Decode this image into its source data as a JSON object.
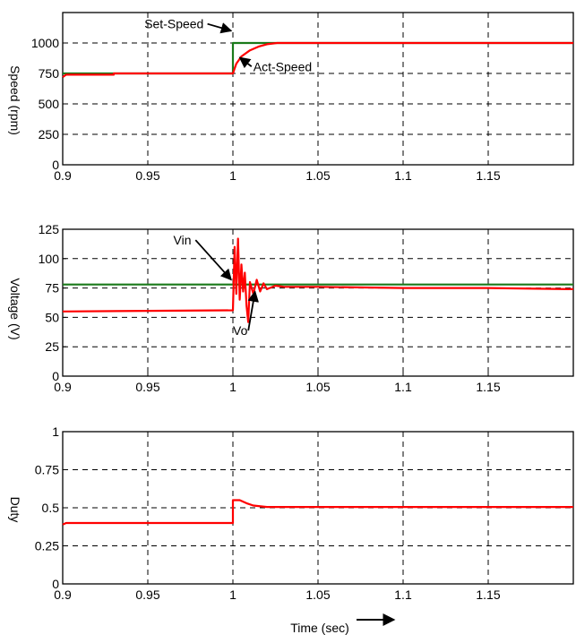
{
  "xlabel": "Time (sec)",
  "colors": {
    "setpoint": "#1a7a1a",
    "actual": "#ff0000",
    "axis": "#000000",
    "grid": "#000000"
  },
  "chart_data": [
    {
      "type": "line",
      "ylabel": "Speed (rpm)",
      "xlim": [
        0.9,
        1.2
      ],
      "ylim": [
        0,
        1250
      ],
      "xticks": [
        "0.9",
        "0.95",
        "1",
        "1.05",
        "1.1",
        "1.15"
      ],
      "yticks": [
        "0",
        "250",
        "500",
        "750",
        "1000"
      ],
      "grid": true,
      "series": [
        {
          "name": "Set-Speed",
          "color": "#1a7a1a",
          "x": [
            0.9,
            1.0,
            1.0,
            1.2
          ],
          "y": [
            750,
            750,
            1000,
            1000
          ]
        },
        {
          "name": "Act-Speed",
          "color": "#ff0000",
          "x": [
            0.9,
            0.902,
            0.93,
            0.93,
            1.0,
            1.002,
            1.005,
            1.01,
            1.015,
            1.02,
            1.026,
            1.2
          ],
          "y": [
            720,
            740,
            740,
            750,
            750,
            830,
            890,
            940,
            970,
            990,
            1000,
            1000
          ]
        }
      ],
      "annotations": [
        {
          "text": "Set-Speed",
          "x": 0.948,
          "y": 1120,
          "arrow_to": [
            0.999,
            1100
          ]
        },
        {
          "text": "Act-Speed",
          "x": 1.012,
          "y": 770,
          "arrow_to": [
            1.004,
            880
          ]
        }
      ]
    },
    {
      "type": "line",
      "ylabel": "Voltage (V)",
      "xlim": [
        0.9,
        1.2
      ],
      "ylim": [
        0,
        125
      ],
      "xticks": [
        "0.9",
        "0.95",
        "1",
        "1.05",
        "1.1",
        "1.15"
      ],
      "yticks": [
        "0",
        "25",
        "50",
        "75",
        "100",
        "125"
      ],
      "grid": true,
      "series": [
        {
          "name": "Vin",
          "color": "#1a7a1a",
          "x": [
            0.9,
            1.2
          ],
          "y": [
            78,
            78
          ]
        },
        {
          "name": "Vo",
          "color": "#ff0000",
          "x": [
            0.9,
            1.0,
            1.001,
            1.002,
            1.003,
            1.004,
            1.005,
            1.006,
            1.007,
            1.008,
            1.009,
            1.01,
            1.012,
            1.014,
            1.016,
            1.018,
            1.02,
            1.025,
            1.03,
            1.05,
            1.1,
            1.15,
            1.2
          ],
          "y": [
            55,
            56,
            110,
            70,
            117,
            65,
            95,
            72,
            88,
            60,
            46,
            80,
            70,
            82,
            72,
            79,
            74,
            77,
            76,
            76,
            75,
            75,
            74
          ]
        }
      ],
      "annotations": [
        {
          "text": "Vin",
          "x": 0.965,
          "y": 112,
          "arrow_to": [
            0.999,
            82
          ]
        },
        {
          "text": "Vo",
          "x": 1.0,
          "y": 35,
          "arrow_to": [
            1.013,
            72
          ]
        }
      ]
    },
    {
      "type": "line",
      "ylabel": "Duty",
      "xlim": [
        0.9,
        1.2
      ],
      "ylim": [
        0,
        1
      ],
      "xticks": [
        "0.9",
        "0.95",
        "1",
        "1.05",
        "1.1",
        "1.15"
      ],
      "yticks": [
        "0",
        "0.25",
        "0.5",
        "0.75",
        "1"
      ],
      "grid": true,
      "series": [
        {
          "name": "Duty",
          "color": "#ff0000",
          "x": [
            0.9,
            0.902,
            1.0,
            1.0,
            1.004,
            1.008,
            1.012,
            1.02,
            1.2
          ],
          "y": [
            0.39,
            0.4,
            0.4,
            0.55,
            0.55,
            0.53,
            0.515,
            0.505,
            0.505
          ]
        }
      ]
    }
  ]
}
